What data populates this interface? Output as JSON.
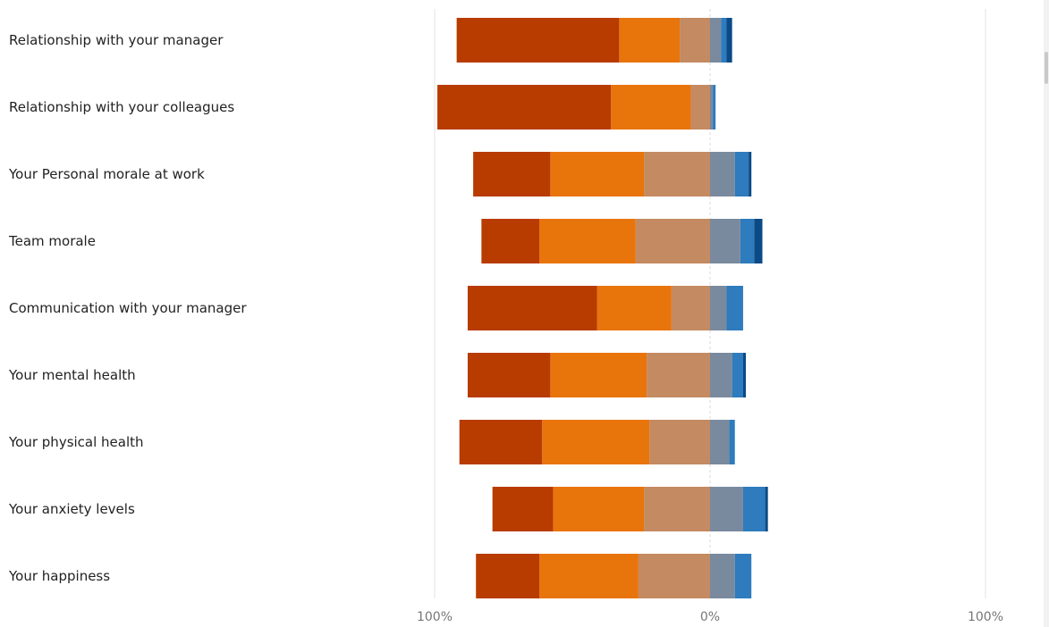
{
  "chart_data": {
    "type": "bar",
    "orientation": "horizontal",
    "stacking": "diverging",
    "categories": [
      "Relationship with your manager",
      "Relationship with your colleagues",
      "Your Personal morale at work",
      "Team morale",
      "Communication with your manager",
      "Your mental health",
      "Your physical health",
      "Your anxiety levels",
      "Your happiness"
    ],
    "series": [
      {
        "side": "negative",
        "color": "#b83b00",
        "values": [
          59,
          63,
          28,
          21,
          47,
          30,
          30,
          22,
          23
        ]
      },
      {
        "side": "negative",
        "color": "#e8740c",
        "values": [
          22,
          29,
          34,
          35,
          27,
          35,
          39,
          33,
          36
        ]
      },
      {
        "side": "negative",
        "color": "#c48a62",
        "values": [
          11,
          7,
          24,
          27,
          14,
          23,
          22,
          24,
          26
        ]
      },
      {
        "side": "positive",
        "color": "#7a8a9e",
        "values": [
          4,
          1,
          9,
          11,
          6,
          8,
          7,
          12,
          9
        ]
      },
      {
        "side": "positive",
        "color": "#2e7bbd",
        "values": [
          2,
          1,
          5,
          5,
          6,
          4,
          2,
          8,
          6
        ]
      },
      {
        "side": "positive",
        "color": "#0b4a86",
        "values": [
          2,
          0,
          1,
          3,
          0,
          1,
          0,
          1,
          0
        ]
      }
    ],
    "xlim": [
      -100,
      100
    ],
    "tick_labels": [
      "100%",
      "0%",
      "100%"
    ],
    "grid": true,
    "legend": "none"
  }
}
